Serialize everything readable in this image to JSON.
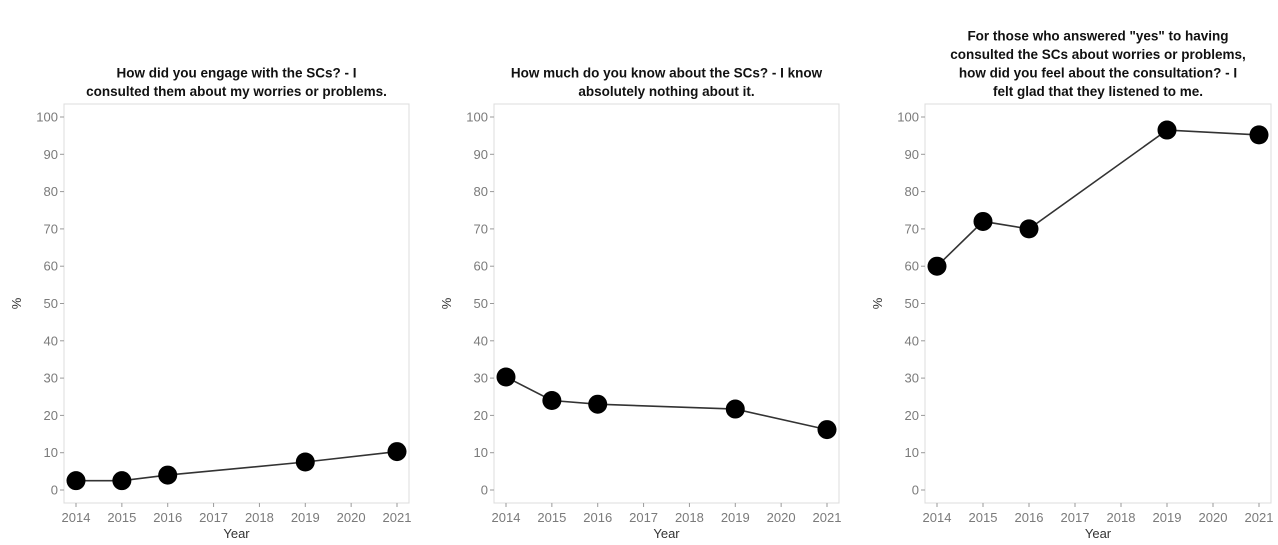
{
  "chart_data": [
    {
      "type": "line",
      "title_lines": [
        "How did you engage with the SCs? - I",
        "consulted them about my worries or problems."
      ],
      "xlabel": "Year",
      "ylabel": "%",
      "xlim": [
        2014,
        2021
      ],
      "ylim": [
        0,
        100
      ],
      "x_ticks": [
        "2014",
        "2015",
        "2016",
        "2017",
        "2018",
        "2019",
        "2020",
        "2021"
      ],
      "y_ticks": [
        "0",
        "10",
        "20",
        "30",
        "40",
        "50",
        "60",
        "70",
        "80",
        "90",
        "100"
      ],
      "grid": false,
      "x": [
        2014,
        2015,
        2016,
        2019,
        2021
      ],
      "y": [
        2.5,
        2.5,
        4,
        7.5,
        10.3
      ]
    },
    {
      "type": "line",
      "title_lines": [
        "How much do you know about the SCs? - I know",
        "absolutely nothing about it."
      ],
      "xlabel": "Year",
      "ylabel": "%",
      "xlim": [
        2014,
        2021
      ],
      "ylim": [
        0,
        100
      ],
      "x_ticks": [
        "2014",
        "2015",
        "2016",
        "2017",
        "2018",
        "2019",
        "2020",
        "2021"
      ],
      "y_ticks": [
        "0",
        "10",
        "20",
        "30",
        "40",
        "50",
        "60",
        "70",
        "80",
        "90",
        "100"
      ],
      "grid": false,
      "x": [
        2014,
        2015,
        2016,
        2019,
        2021
      ],
      "y": [
        30.3,
        24,
        23,
        21.7,
        16.2
      ]
    },
    {
      "type": "line",
      "title_lines": [
        "For those who answered \"yes\" to having",
        "consulted the SCs about worries or problems,",
        "how did you feel about the consultation? - I",
        "felt glad that they listened to me."
      ],
      "xlabel": "Year",
      "ylabel": "%",
      "xlim": [
        2014,
        2021
      ],
      "ylim": [
        0,
        100
      ],
      "x_ticks": [
        "2014",
        "2015",
        "2016",
        "2017",
        "2018",
        "2019",
        "2020",
        "2021"
      ],
      "y_ticks": [
        "0",
        "10",
        "20",
        "30",
        "40",
        "50",
        "60",
        "70",
        "80",
        "90",
        "100"
      ],
      "grid": false,
      "x": [
        2014,
        2015,
        2016,
        2019,
        2021
      ],
      "y": [
        60,
        72,
        70,
        96.5,
        95.2
      ]
    }
  ],
  "colors": {
    "marker": "#000000",
    "line": "#333333",
    "frame": "#dcdcdc",
    "tick_text": "#7a7a7a"
  }
}
